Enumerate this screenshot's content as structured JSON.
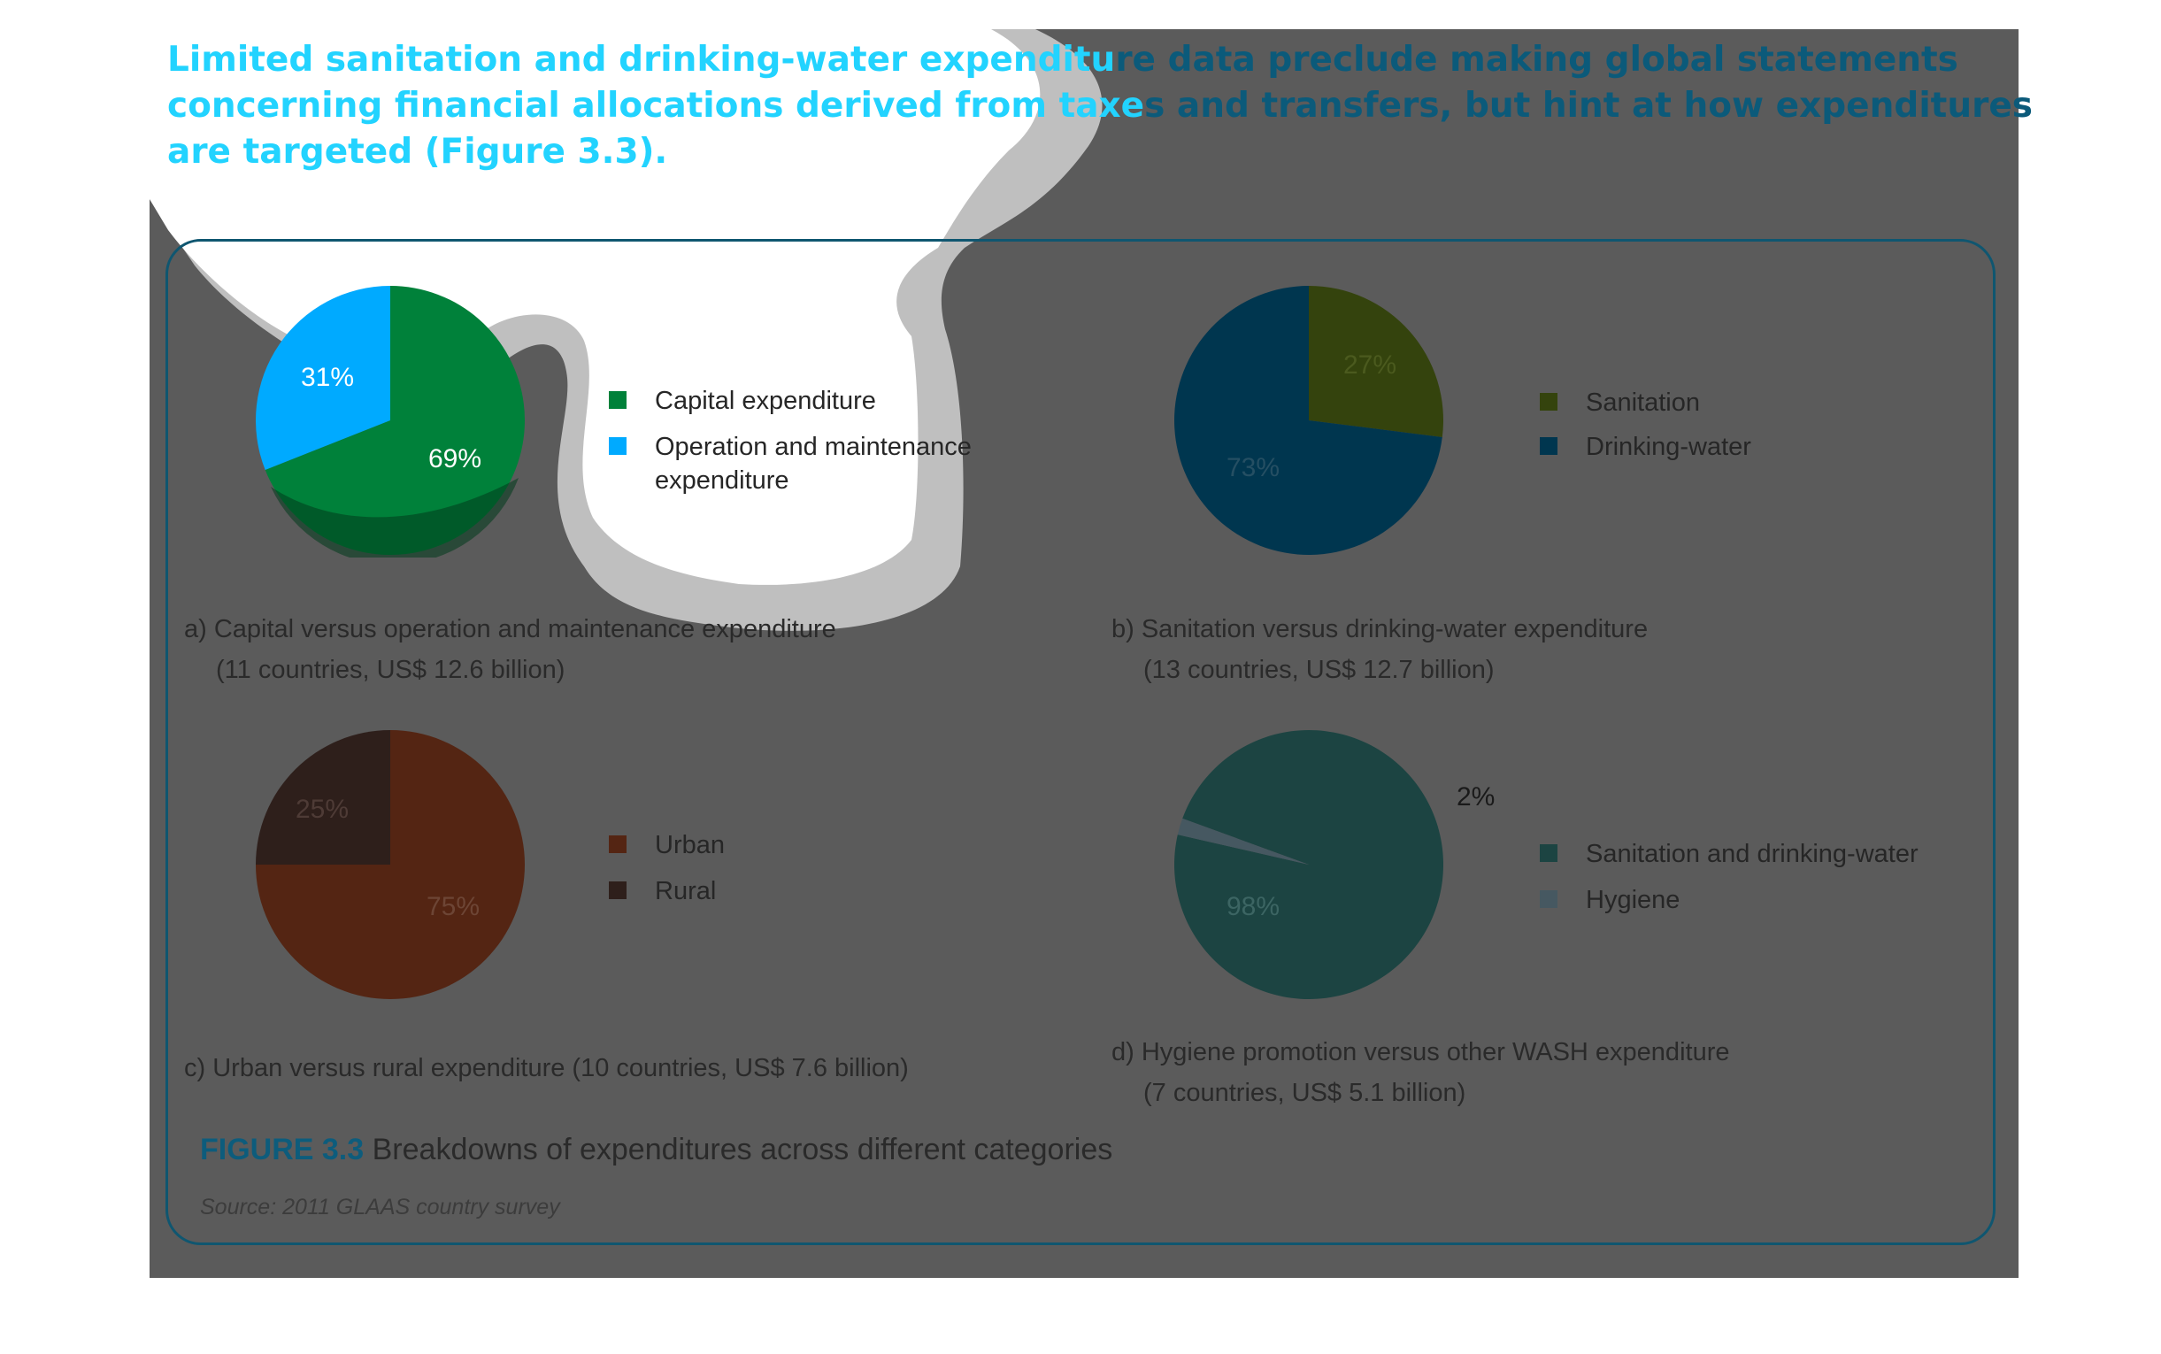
{
  "heading": {
    "line1": "Limited sanitation and drinking-water expenditure data preclude making global statements",
    "line2": "concerning financial allocations derived from taxes and transfers, but hint at how expenditures",
    "line3": "are targeted (Figure 3.3)."
  },
  "figure": {
    "number": "FIGURE 3.3",
    "title": "Breakdowns of expenditures across different categories",
    "source": "Source: 2011 GLAAS country survey"
  },
  "chart_data": [
    {
      "type": "pie",
      "caption_line1": "a) Capital versus operation and maintenance expenditure",
      "caption_line2": "(11 countries, US$ 12.6 billion)",
      "slices": [
        {
          "name": "Capital expenditure",
          "value": 69,
          "label": "69%",
          "color": "#00813a"
        },
        {
          "name": "Operation and maintenance expenditure",
          "value": 31,
          "label": "31%",
          "color": "#00aaff"
        }
      ],
      "legend": [
        "Capital expenditure",
        "Operation and maintenance",
        "expenditure"
      ]
    },
    {
      "type": "pie",
      "caption_line1": "b) Sanitation versus drinking-water expenditure",
      "caption_line2": "(13 countries, US$ 12.7 billion)",
      "slices": [
        {
          "name": "Sanitation",
          "value": 27,
          "label": "27%",
          "color": "#34430d"
        },
        {
          "name": "Drinking-water",
          "value": 73,
          "label": "73%",
          "color": "#00364f"
        }
      ],
      "legend": [
        "Sanitation",
        "Drinking-water"
      ]
    },
    {
      "type": "pie",
      "caption_line1": "c) Urban versus rural expenditure (10 countries, US$ 7.6 billion)",
      "caption_line2": "",
      "slices": [
        {
          "name": "Urban",
          "value": 75,
          "label": "75%",
          "color": "#542513"
        },
        {
          "name": "Rural",
          "value": 25,
          "label": "25%",
          "color": "#2e1f1b"
        }
      ],
      "legend": [
        "Urban",
        "Rural"
      ]
    },
    {
      "type": "pie",
      "caption_line1": "d) Hygiene promotion versus other WASH expenditure",
      "caption_line2": "(7 countries, US$ 5.1 billion)",
      "slices": [
        {
          "name": "Sanitation and drinking-water",
          "value": 98,
          "label": "98%",
          "color": "#1c4442"
        },
        {
          "name": "Hygiene",
          "value": 2,
          "label": "2%",
          "color": "#465861"
        }
      ],
      "legend": [
        "Sanitation and drinking-water",
        "Hygiene"
      ]
    }
  ],
  "colors": {
    "overlay_gray": "#5b5b5b",
    "heading_highlight": "#22d3ff",
    "heading_dark": "#0b5a7a",
    "frame": "#0f5670"
  }
}
